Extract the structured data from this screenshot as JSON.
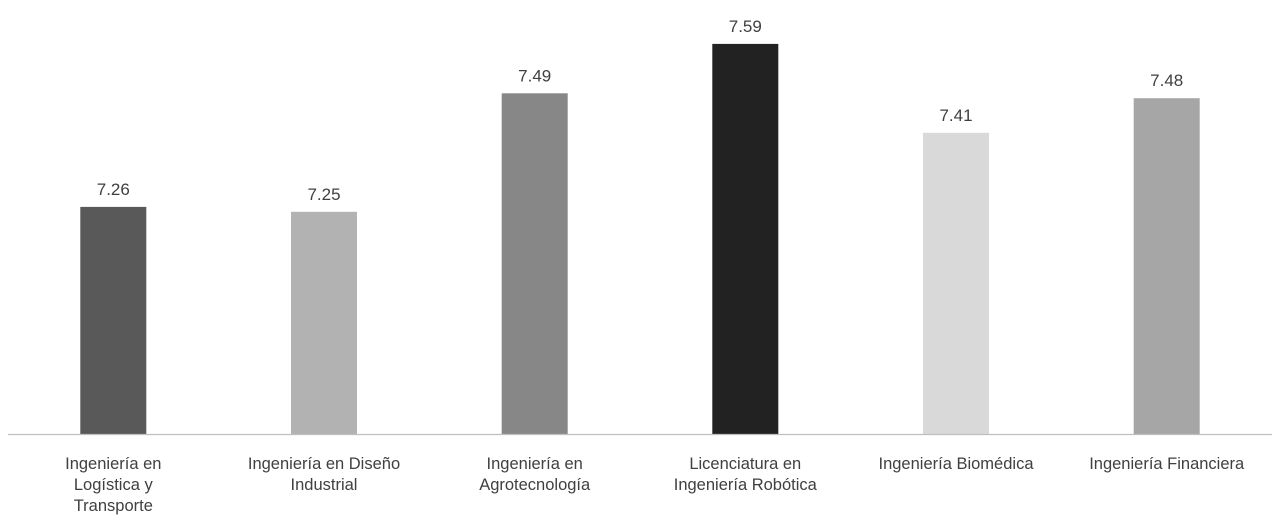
{
  "chart_data": {
    "type": "bar",
    "categories": [
      [
        "Ingeniería en",
        "Logística y",
        "Transporte"
      ],
      [
        "Ingeniería en Diseño",
        "Industrial"
      ],
      [
        "Ingeniería en",
        "Agrotecnología"
      ],
      [
        "Licenciatura en",
        "Ingeniería Robótica"
      ],
      [
        "Ingeniería Biomédica"
      ],
      [
        "Ingeniería Financiera"
      ]
    ],
    "values": [
      7.26,
      7.25,
      7.49,
      7.59,
      7.41,
      7.48
    ],
    "data_labels": [
      "7.26",
      "7.25",
      "7.49",
      "7.59",
      "7.41",
      "7.48"
    ],
    "bar_colors": [
      "#595959",
      "#b2b2b2",
      "#878787",
      "#222222",
      "#d9d9d9",
      "#a6a6a6"
    ],
    "axis_color": "#bfbfbf",
    "label_color": "#404040",
    "ylim": [
      6.8,
      7.6
    ],
    "grid": false,
    "legend": "none"
  }
}
